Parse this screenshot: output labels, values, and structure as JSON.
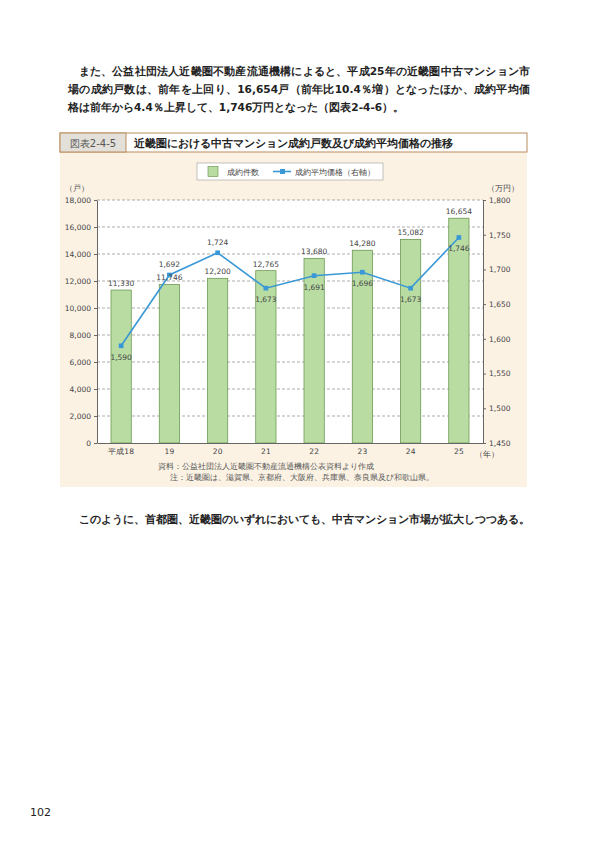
{
  "paragraph_before": "また、公益社団法人近畿圏不動産流通機構によると、平成25年の近畿圏中古マンション市場の成約戸数は、前年を上回り、16,654戸（前年比10.4％増）となったほか、成約平均価格は前年から4.4％上昇して、1,746万円となった（図表2-4-6）。",
  "figure_number": "図表2-4-5",
  "chart_data": {
    "type": "bar",
    "title": "近畿圏における中古マンション成約戸数及び成約平均価格の推移",
    "x_label": "（年）",
    "y_label": "（戸）",
    "y2_label": "（万円）",
    "categories": [
      "平成18",
      "19",
      "20",
      "21",
      "22",
      "23",
      "24",
      "25"
    ],
    "series": [
      {
        "name": "成約件数",
        "type": "bar",
        "color": "#b9dca3",
        "values": [
          11330,
          11746,
          12200,
          12765,
          13680,
          14280,
          15082,
          16654
        ],
        "value_labels": [
          "11,330",
          "11,746",
          "12,200",
          "12,765",
          "13,680",
          "14,280",
          "15,082",
          "16,654"
        ]
      },
      {
        "name": "成約平均価格（右軸）",
        "type": "line",
        "color": "#3a98d6",
        "axis": "y2",
        "marker": "square",
        "values": [
          1590,
          1692,
          1724,
          1673,
          1691,
          1696,
          1673,
          1746
        ],
        "value_labels": [
          "1,590",
          "1,692",
          "1,724",
          "1,673",
          "1,691",
          "1,696",
          "1,673",
          "1,746"
        ]
      }
    ],
    "ylim": [
      0,
      18000
    ],
    "yticks": [
      0,
      {
        "value": 2000,
        "label": "2,000"
      },
      {
        "value": 4000,
        "label": "4,000"
      },
      {
        "value": 6000,
        "label": "6,000"
      },
      {
        "value": 8000,
        "label": "8,000"
      },
      {
        "value": 10000,
        "label": "10,000"
      },
      {
        "value": 12000,
        "label": "12,000"
      },
      {
        "value": 14000,
        "label": "14,000"
      },
      {
        "value": 16000,
        "label": "16,000"
      },
      {
        "value": 18000,
        "label": "18,000"
      }
    ],
    "y2lim": [
      1450,
      1800
    ],
    "y2ticks": [
      {
        "value": 1450,
        "label": "1,450"
      },
      {
        "value": 1500,
        "label": "1,500"
      },
      {
        "value": 1550,
        "label": "1,550"
      },
      {
        "value": 1600,
        "label": "1,600"
      },
      {
        "value": 1650,
        "label": "1,650"
      },
      {
        "value": 1700,
        "label": "1,700"
      },
      {
        "value": 1750,
        "label": "1,750"
      },
      {
        "value": 1800,
        "label": "1,800"
      }
    ],
    "grid": true,
    "legend": "top",
    "data_labels": true,
    "notes": [
      "資料：公益社団法人近畿圏不動産流通機構公表資料より作成",
      "注：近畿圏は、滋賀県、京都府、大阪府、兵庫県、奈良県及び和歌山県。"
    ]
  },
  "paragraph_after": "このように、首都圏、近畿圏のいずれにおいても、中古マンション市場が拡大しつつある。",
  "page_number": "102"
}
